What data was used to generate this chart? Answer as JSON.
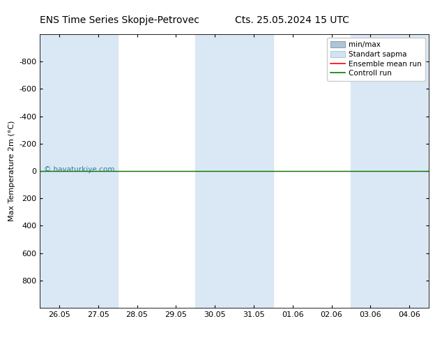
{
  "title_left": "ENS Time Series Skopje-Petrovec",
  "title_right": "Cts. 25.05.2024 15 UTC",
  "ylabel": "Max Temperature 2m (°C)",
  "ylim": [
    -1000,
    1000
  ],
  "yticks": [
    -800,
    -600,
    -400,
    -200,
    0,
    200,
    400,
    600,
    800
  ],
  "xtick_labels": [
    "26.05",
    "27.05",
    "28.05",
    "29.05",
    "30.05",
    "31.05",
    "01.06",
    "02.06",
    "03.06",
    "04.06"
  ],
  "watermark": "© havaturkiye.com",
  "bg_color": "#ffffff",
  "plot_bg_color": "#ffffff",
  "shaded_bands_x": [
    0,
    1,
    4,
    5,
    8,
    9
  ],
  "shaded_color": "#dae8f5",
  "green_line_y": 0,
  "green_line_color": "#008000",
  "red_line_y": 0,
  "red_line_color": "#ff0000",
  "minmax_color": "#b0c4d8",
  "minmax_edge": "#708090",
  "std_color": "#d0e4f0",
  "std_edge": "#a0b8cc",
  "legend_labels": [
    "min/max",
    "Standart sapma",
    "Ensemble mean run",
    "Controll run"
  ],
  "title_fontsize": 10,
  "axis_label_fontsize": 8,
  "tick_fontsize": 8
}
